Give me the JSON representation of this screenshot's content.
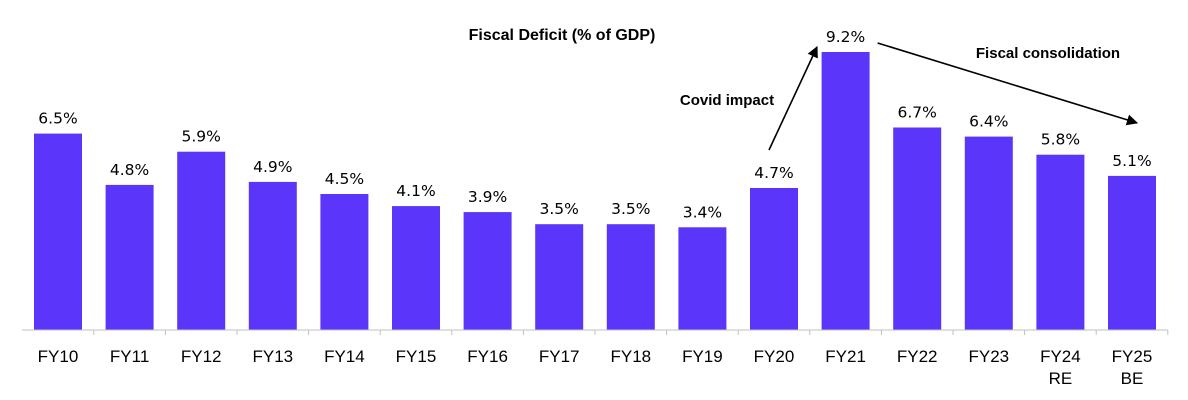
{
  "chart_data": {
    "type": "bar",
    "title": "Fiscal Deficit (% of GDP)",
    "xlabel": "",
    "ylabel": "",
    "ylim": [
      0,
      10.5
    ],
    "grid": false,
    "legend": "none",
    "categories": [
      "FY10",
      "FY11",
      "FY12",
      "FY13",
      "FY14",
      "FY15",
      "FY16",
      "FY17",
      "FY18",
      "FY19",
      "FY20",
      "FY21",
      "FY22",
      "FY23",
      "FY24 RE",
      "FY25 BE"
    ],
    "tick_lines": [
      [
        "FY10"
      ],
      [
        "FY11"
      ],
      [
        "FY12"
      ],
      [
        "FY13"
      ],
      [
        "FY14"
      ],
      [
        "FY15"
      ],
      [
        "FY16"
      ],
      [
        "FY17"
      ],
      [
        "FY18"
      ],
      [
        "FY19"
      ],
      [
        "FY20"
      ],
      [
        "FY21"
      ],
      [
        "FY22"
      ],
      [
        "FY23"
      ],
      [
        "FY24",
        "RE"
      ],
      [
        "FY25",
        "BE"
      ]
    ],
    "values": [
      6.5,
      4.8,
      5.9,
      4.9,
      4.5,
      4.1,
      3.9,
      3.5,
      3.5,
      3.4,
      4.7,
      9.2,
      6.7,
      6.4,
      5.8,
      5.1
    ],
    "data_labels": [
      "6.5%",
      "4.8%",
      "5.9%",
      "4.9%",
      "4.5%",
      "4.1%",
      "3.9%",
      "3.5%",
      "3.5%",
      "3.4%",
      "4.7%",
      "9.2%",
      "6.7%",
      "6.4%",
      "5.8%",
      "5.1%"
    ],
    "bar_color": "#5b35f9",
    "annotations": [
      {
        "text": "Covid impact",
        "from": "FY20",
        "to": "FY21"
      },
      {
        "text": "Fiscal consolidation",
        "from": "FY21",
        "to": "FY25 BE"
      }
    ]
  }
}
